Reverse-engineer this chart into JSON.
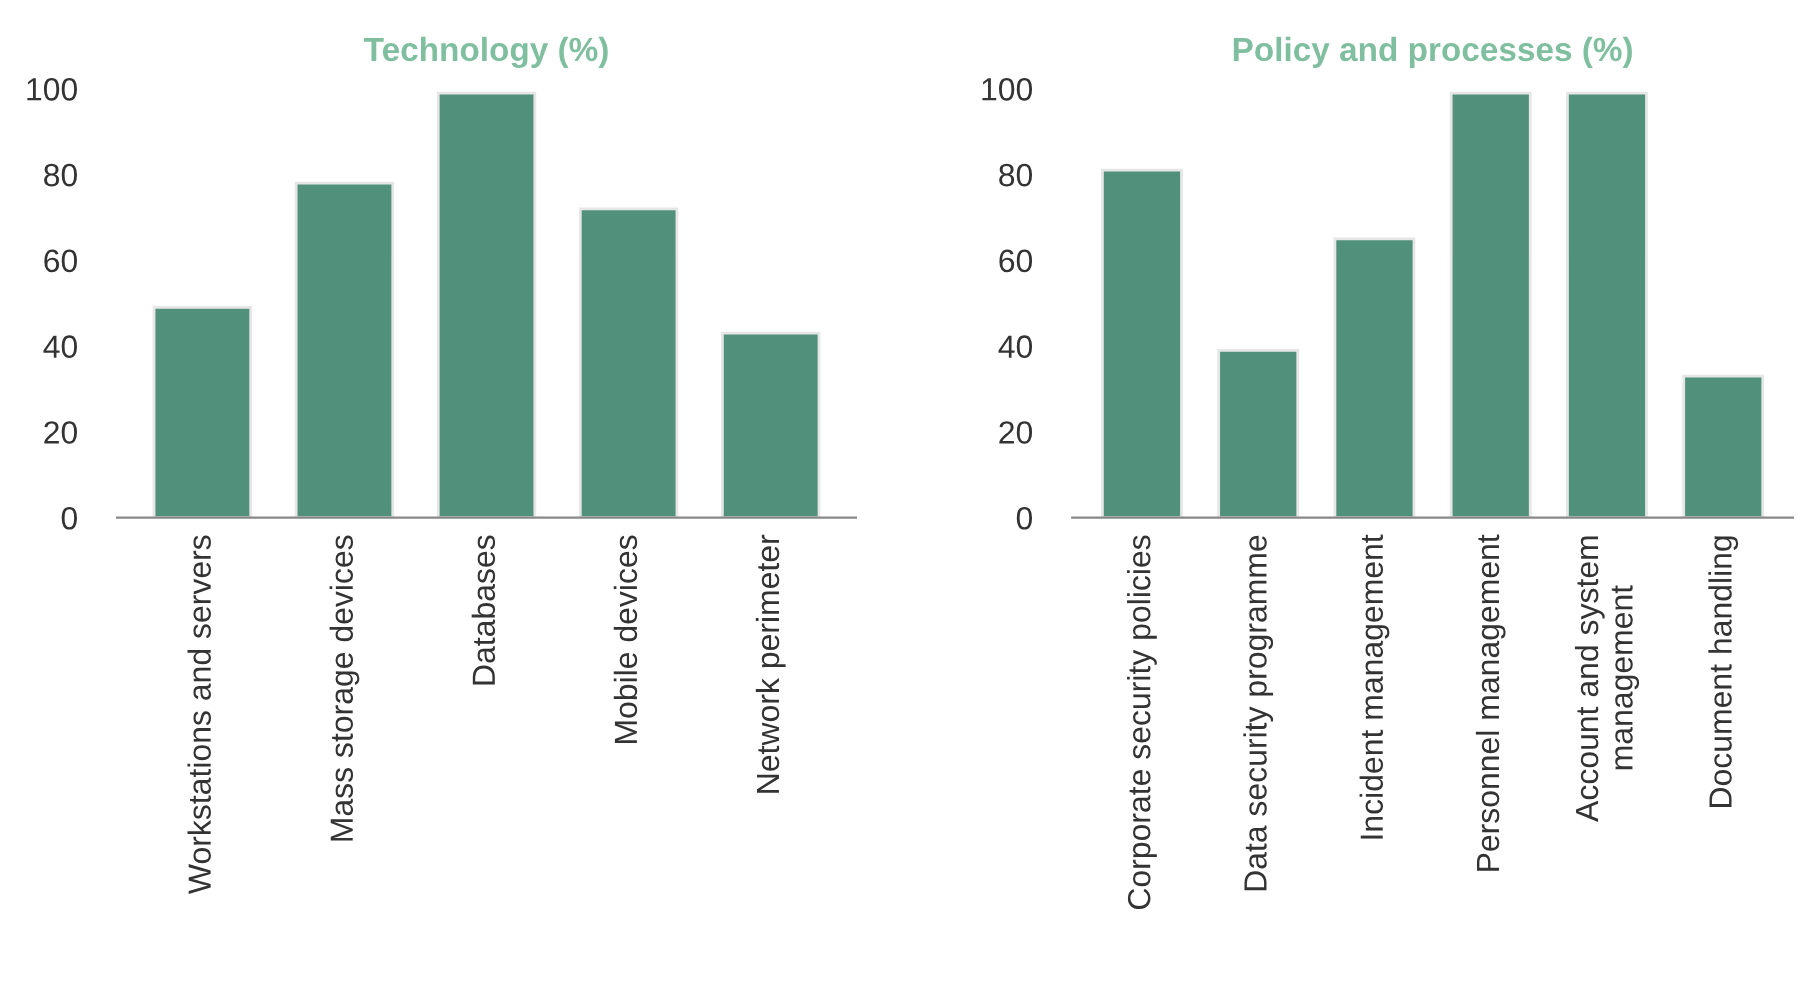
{
  "chart_data": [
    {
      "type": "bar",
      "title": "Technology (%)",
      "categories": [
        "Workstations and servers",
        "Mass storage devices",
        "Databases",
        "Mobile devices",
        "Network perimeter"
      ],
      "values": [
        49,
        78,
        99,
        72,
        43
      ],
      "color": "#51907a",
      "ylim": [
        0,
        100
      ],
      "yticks": [
        0,
        20,
        40,
        60,
        80,
        100
      ],
      "grid": false
    },
    {
      "type": "bar",
      "title": "Policy and processes (%)",
      "categories": [
        "Corporate security policies",
        "Data security programme",
        "Incident management",
        "Personnel management",
        "Account and system\nmanagement",
        "Document handling"
      ],
      "values": [
        81,
        39,
        65,
        99,
        99,
        33
      ],
      "color": "#51907a",
      "ylim": [
        0,
        100
      ],
      "yticks": [
        0,
        20,
        40,
        60,
        80,
        100
      ],
      "grid": false
    }
  ]
}
